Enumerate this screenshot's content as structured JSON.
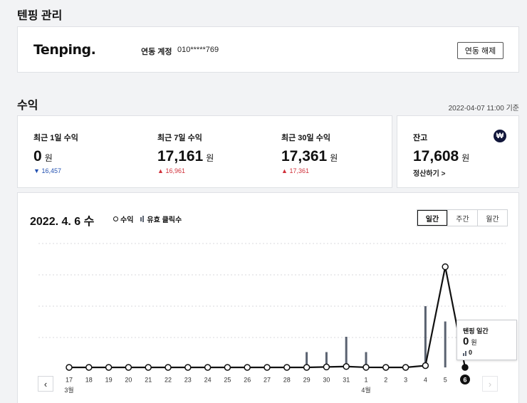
{
  "page": {
    "title": "텐핑 관리"
  },
  "account": {
    "logo": "Tenping.",
    "linked_label": "연동 계정",
    "linked_value": "010*****769",
    "unlink_button": "연동 해제"
  },
  "revenue": {
    "section_title": "수익",
    "as_of": "2022-04-07 11:00 기준",
    "stats": [
      {
        "label": "최근 1일 수익",
        "value": "0",
        "unit": "원",
        "delta": "16,457",
        "direction": "down"
      },
      {
        "label": "최근 7일 수익",
        "value": "17,161",
        "unit": "원",
        "delta": "16,961",
        "direction": "up"
      },
      {
        "label": "최근 30일 수익",
        "value": "17,361",
        "unit": "원",
        "delta": "17,361",
        "direction": "up"
      }
    ],
    "balance": {
      "label": "잔고",
      "value": "17,608",
      "unit": "원",
      "settle_link": "정산하기 >",
      "icon": "won-icon"
    }
  },
  "chart_panel": {
    "date_label": "2022. 4. 6 수",
    "legend": [
      {
        "name": "수익",
        "marker": "circle"
      },
      {
        "name": "유효 클릭수",
        "marker": "bar"
      }
    ],
    "tabs": [
      {
        "label": "일간",
        "active": true
      },
      {
        "label": "주간",
        "active": false
      },
      {
        "label": "월간",
        "active": false
      }
    ],
    "prev_icon": "chevron-left-icon",
    "next_icon": "chevron-right-icon",
    "tooltip": {
      "title": "텐핑 일간",
      "value": "0",
      "unit": "원",
      "clicks": "0"
    }
  },
  "chart_data": {
    "type": "line",
    "categories": [
      "17",
      "18",
      "19",
      "20",
      "21",
      "22",
      "23",
      "24",
      "25",
      "26",
      "27",
      "28",
      "29",
      "30",
      "31",
      "1",
      "2",
      "3",
      "4",
      "5",
      "6"
    ],
    "month_labels": [
      {
        "index": 0,
        "label": "3월"
      },
      {
        "index": 15,
        "label": "4월"
      }
    ],
    "series": [
      {
        "name": "수익",
        "type": "line",
        "values": [
          0,
          0,
          0,
          0,
          0,
          0,
          0,
          0,
          0,
          0,
          0,
          0,
          0,
          70,
          150,
          10,
          0,
          0,
          300,
          16800,
          0
        ]
      },
      {
        "name": "유효 클릭수",
        "type": "bar",
        "values": [
          0,
          0,
          0,
          0,
          0,
          0,
          0,
          0,
          0,
          0,
          0,
          0,
          1,
          1,
          2,
          1,
          0,
          0,
          4,
          3,
          0
        ]
      }
    ],
    "selected_index": 20,
    "revenue_max": 17000,
    "clicks_max": 5,
    "grid": true,
    "legend_position": "top-left"
  },
  "colors": {
    "accent": "#111111",
    "up": "#d0303a",
    "down": "#2250b0",
    "bar": "#5a6270"
  }
}
